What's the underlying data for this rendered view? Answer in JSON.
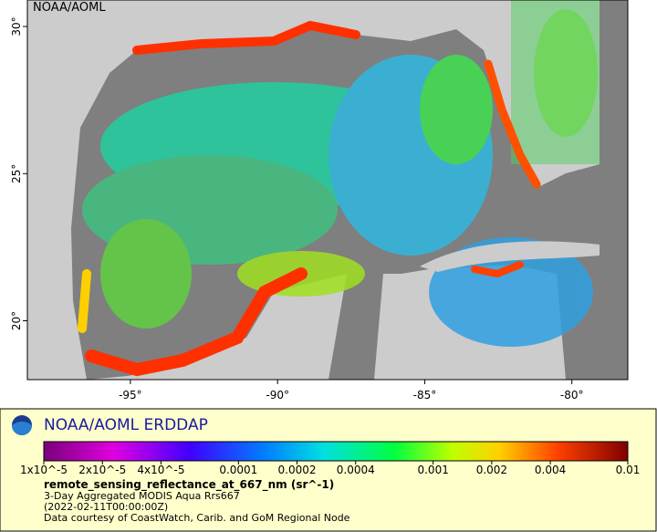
{
  "map": {
    "attribution": "NOAA/AOML",
    "xlim": [
      -98.5,
      -78.1
    ],
    "ylim": [
      18.0,
      30.9
    ],
    "xticks": [
      {
        "value": -95,
        "label": "-95°"
      },
      {
        "value": -90,
        "label": "-90°"
      },
      {
        "value": -85,
        "label": "-85°"
      },
      {
        "value": -80,
        "label": "-80°"
      }
    ],
    "yticks": [
      {
        "value": 20,
        "label": "20°"
      },
      {
        "value": 25,
        "label": "25°"
      },
      {
        "value": 30,
        "label": "30°"
      }
    ]
  },
  "legend": {
    "title": "NOAA/AOML ERDDAP",
    "colorbar": {
      "lim": [
        1e-05,
        0.01
      ],
      "log": true,
      "ticks": [
        {
          "value": 1e-05,
          "label": "1x10^-5"
        },
        {
          "value": 2e-05,
          "label": "2x10^-5"
        },
        {
          "value": 4e-05,
          "label": "4x10^-5"
        },
        0.0001,
        0.0002,
        0.0004,
        0.001,
        0.002,
        0.004,
        0.01
      ]
    },
    "variable": "remote_sensing_reflectance_at_667_nm (sr^-1)",
    "lines": [
      "3-Day Aggregated MODIS Aqua Rrs667",
      "(2022-02-11T00:00:00Z)",
      "Data courtesy of CoastWatch, Carib. and GoM Regional Node"
    ]
  }
}
